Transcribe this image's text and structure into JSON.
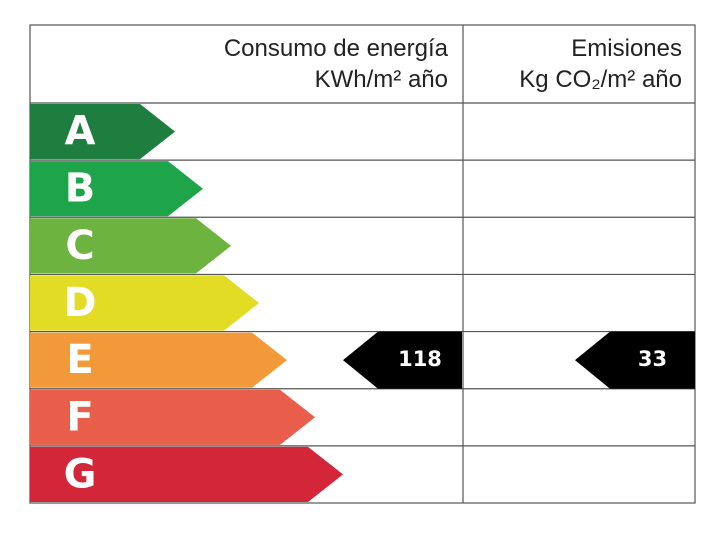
{
  "header": {
    "consumption": [
      "Consumo de energía",
      "KWh/m² año"
    ],
    "emissions": [
      "Emisiones",
      "Kg CO₂/m² año"
    ]
  },
  "ratings": [
    {
      "letter": "A",
      "color": "#1d7e40"
    },
    {
      "letter": "B",
      "color": "#1ea54a"
    },
    {
      "letter": "C",
      "color": "#6db33f"
    },
    {
      "letter": "D",
      "color": "#e3dc24"
    },
    {
      "letter": "E",
      "color": "#f29a3a"
    },
    {
      "letter": "F",
      "color": "#e85e4b"
    },
    {
      "letter": "G",
      "color": "#d32638"
    }
  ],
  "consumption": {
    "value": 118,
    "rating": "E"
  },
  "emissions": {
    "value": 33,
    "rating": "E"
  }
}
